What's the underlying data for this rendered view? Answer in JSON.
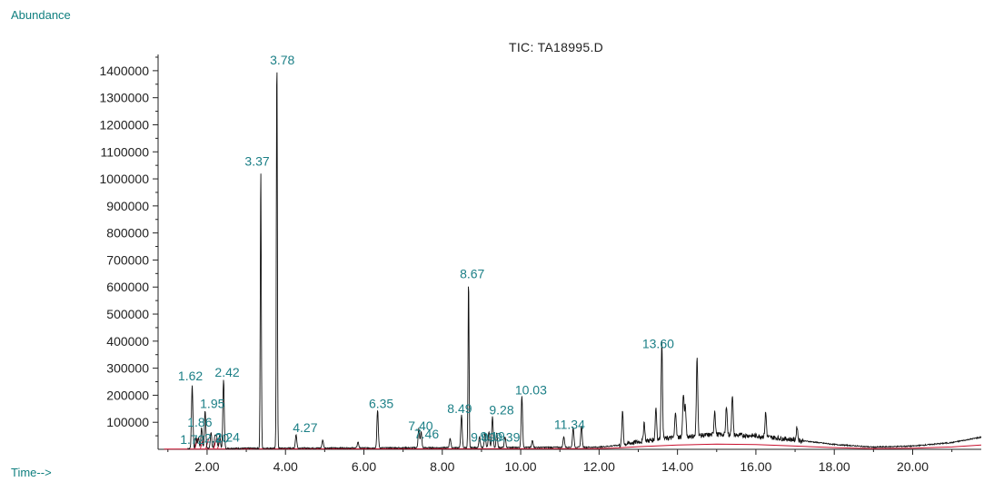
{
  "chart_data": {
    "type": "line",
    "title": "TIC: TA18995.D",
    "ylabel": "Abundance",
    "xlabel": "Time-->",
    "xlim": [
      0.75,
      21.75
    ],
    "ylim": [
      0,
      1460000
    ],
    "x_ticks": [
      "2.00",
      "4.00",
      "6.00",
      "8.00",
      "10.00",
      "12.00",
      "14.00",
      "16.00",
      "18.00",
      "20.00"
    ],
    "y_ticks": [
      "100000",
      "200000",
      "300000",
      "400000",
      "500000",
      "600000",
      "700000",
      "800000",
      "900000",
      "1000000",
      "1100000",
      "1200000",
      "1300000",
      "1400000"
    ],
    "peaks": [
      {
        "rt": 1.62,
        "label": "1.62",
        "height": 235000
      },
      {
        "rt": 1.86,
        "label": "1.86",
        "height": 78000
      },
      {
        "rt": 1.95,
        "label": "1.95",
        "height": 140000
      },
      {
        "rt": 1.72,
        "label": "1.72",
        "height": 40000
      },
      {
        "rt": 2.2,
        "label": "2.20",
        "height": 45000
      },
      {
        "rt": 2.24,
        "label": "2.24",
        "height": 48000
      },
      {
        "rt": 2.42,
        "label": "2.42",
        "height": 255000
      },
      {
        "rt": 3.37,
        "label": "3.37",
        "height": 1035000
      },
      {
        "rt": 3.78,
        "label": "3.78",
        "height": 1450000
      },
      {
        "rt": 4.27,
        "label": "4.27",
        "height": 50000
      },
      {
        "rt": 6.35,
        "label": "6.35",
        "height": 140000
      },
      {
        "rt": 7.4,
        "label": "7.40",
        "height": 70000
      },
      {
        "rt": 7.46,
        "label": "7.46",
        "height": 60000
      },
      {
        "rt": 8.49,
        "label": "8.49",
        "height": 120000
      },
      {
        "rt": 8.67,
        "label": "8.67",
        "height": 620000
      },
      {
        "rt": 9.09,
        "label": "9.09",
        "height": 55000
      },
      {
        "rt": 9.19,
        "label": "9.19",
        "height": 58000
      },
      {
        "rt": 9.28,
        "label": "9.28",
        "height": 115000
      },
      {
        "rt": 9.39,
        "label": "9.39",
        "height": 55000
      },
      {
        "rt": 10.03,
        "label": "10.03",
        "height": 190000
      },
      {
        "rt": 11.34,
        "label": "11.34",
        "height": 75000
      },
      {
        "rt": 13.6,
        "label": "13.60",
        "height": 360000
      }
    ],
    "unlabeled_peaks": [
      {
        "rt": 1.78,
        "height": 40000
      },
      {
        "rt": 2.1,
        "height": 60000
      },
      {
        "rt": 2.32,
        "height": 50000
      },
      {
        "rt": 4.95,
        "height": 30000
      },
      {
        "rt": 5.85,
        "height": 22000
      },
      {
        "rt": 8.2,
        "height": 35000
      },
      {
        "rt": 8.95,
        "height": 40000
      },
      {
        "rt": 9.6,
        "height": 40000
      },
      {
        "rt": 10.3,
        "height": 25000
      },
      {
        "rt": 11.1,
        "height": 40000
      },
      {
        "rt": 11.55,
        "height": 80000
      },
      {
        "rt": 12.6,
        "height": 120000
      },
      {
        "rt": 13.15,
        "height": 70000
      },
      {
        "rt": 13.45,
        "height": 120000
      },
      {
        "rt": 13.95,
        "height": 100000
      },
      {
        "rt": 14.15,
        "height": 160000
      },
      {
        "rt": 14.2,
        "height": 110000
      },
      {
        "rt": 14.5,
        "height": 290000
      },
      {
        "rt": 14.95,
        "height": 90000
      },
      {
        "rt": 15.25,
        "height": 110000
      },
      {
        "rt": 15.4,
        "height": 150000
      },
      {
        "rt": 16.25,
        "height": 90000
      },
      {
        "rt": 17.05,
        "height": 50000
      }
    ],
    "baseline": [
      {
        "x": 0.9,
        "y": 3000
      },
      {
        "x": 12.0,
        "y": 8000
      },
      {
        "x": 12.5,
        "y": 15000
      },
      {
        "x": 13.0,
        "y": 28000
      },
      {
        "x": 14.0,
        "y": 45000
      },
      {
        "x": 15.0,
        "y": 55000
      },
      {
        "x": 16.0,
        "y": 50000
      },
      {
        "x": 17.0,
        "y": 35000
      },
      {
        "x": 18.0,
        "y": 18000
      },
      {
        "x": 19.0,
        "y": 8000
      },
      {
        "x": 20.0,
        "y": 12000
      },
      {
        "x": 21.0,
        "y": 25000
      },
      {
        "x": 21.75,
        "y": 45000
      }
    ],
    "label_offsets_note": "",
    "trace_color": "#111111",
    "label_color": "#1b7f86",
    "baseline_color": "#c8102e",
    "grid": false
  }
}
